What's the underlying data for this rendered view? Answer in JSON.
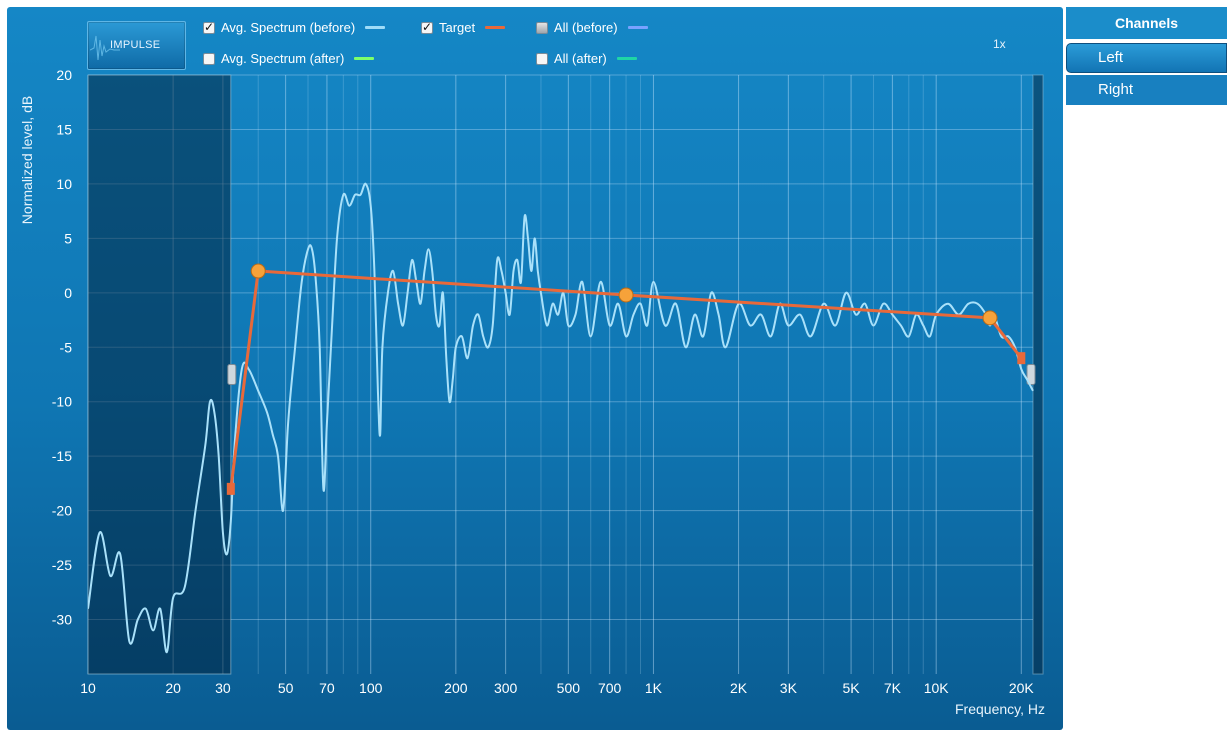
{
  "impulse_button": {
    "label": "IMPULSE"
  },
  "legend": [
    {
      "key": "avg_before",
      "label": "Avg. Spectrum (before)",
      "state": "checked",
      "color": "#9fdcf8"
    },
    {
      "key": "target",
      "label": "Target",
      "state": "checked",
      "color": "#e8693a"
    },
    {
      "key": "all_before",
      "label": "All (before)",
      "state": "mixed",
      "color": "#7aa2ff"
    },
    {
      "key": "avg_after",
      "label": "Avg. Spectrum (after)",
      "state": "unchecked",
      "color": "#7dff6a"
    },
    {
      "key": "all_after",
      "label": "All (after)",
      "state": "unchecked",
      "color": "#1fd6a6"
    }
  ],
  "zoom_label": "1x",
  "channels": {
    "header": "Channels",
    "items": [
      {
        "label": "Left",
        "selected": true
      },
      {
        "label": "Right",
        "selected": false
      }
    ]
  },
  "chart_data": {
    "type": "line",
    "ylabel": "Normalized level, dB",
    "xlabel": "Frequency, Hz",
    "xscale": "log",
    "xlim": [
      10,
      22000
    ],
    "ylim": [
      -35,
      20
    ],
    "y_ticks": [
      20,
      15,
      10,
      5,
      0,
      -5,
      -10,
      -15,
      -20,
      -25,
      -30
    ],
    "x_ticks": [
      {
        "value": 10,
        "label": "10"
      },
      {
        "value": 20,
        "label": "20"
      },
      {
        "value": 30,
        "label": "30"
      },
      {
        "value": 50,
        "label": "50"
      },
      {
        "value": 70,
        "label": "70"
      },
      {
        "value": 100,
        "label": "100"
      },
      {
        "value": 200,
        "label": "200"
      },
      {
        "value": 300,
        "label": "300"
      },
      {
        "value": 500,
        "label": "500"
      },
      {
        "value": 700,
        "label": "700"
      },
      {
        "value": 1000,
        "label": "1K"
      },
      {
        "value": 2000,
        "label": "2K"
      },
      {
        "value": 3000,
        "label": "3K"
      },
      {
        "value": 5000,
        "label": "5K"
      },
      {
        "value": 7000,
        "label": "7K"
      },
      {
        "value": 10000,
        "label": "10K"
      },
      {
        "value": 20000,
        "label": "20K"
      }
    ],
    "excluded_range_hz": [
      10,
      32
    ],
    "target_curve": [
      [
        32,
        -18
      ],
      [
        40,
        2
      ],
      [
        800,
        -0.2
      ],
      [
        15500,
        -2.3
      ],
      [
        20000,
        -6
      ]
    ],
    "target_handles": [
      [
        40,
        2
      ],
      [
        800,
        -0.2
      ],
      [
        15500,
        -2.3
      ]
    ],
    "target_end_markers": [
      [
        32,
        -18
      ],
      [
        20000,
        -6
      ]
    ],
    "spectrum_before": [
      [
        10,
        -29
      ],
      [
        11,
        -22
      ],
      [
        12,
        -26
      ],
      [
        13,
        -24
      ],
      [
        14,
        -32
      ],
      [
        15,
        -30
      ],
      [
        16,
        -29
      ],
      [
        17,
        -31
      ],
      [
        18,
        -29
      ],
      [
        19,
        -33
      ],
      [
        20,
        -28
      ],
      [
        22,
        -27
      ],
      [
        24,
        -20
      ],
      [
        26,
        -14
      ],
      [
        27,
        -10
      ],
      [
        28,
        -11
      ],
      [
        29,
        -15
      ],
      [
        30,
        -22
      ],
      [
        31,
        -24
      ],
      [
        32,
        -21
      ],
      [
        33,
        -14
      ],
      [
        35,
        -7
      ],
      [
        37,
        -7
      ],
      [
        40,
        -9
      ],
      [
        43,
        -11
      ],
      [
        45,
        -13
      ],
      [
        47,
        -15
      ],
      [
        49,
        -20
      ],
      [
        51,
        -12
      ],
      [
        54,
        -5
      ],
      [
        57,
        1
      ],
      [
        60,
        4
      ],
      [
        62,
        4
      ],
      [
        64,
        1
      ],
      [
        66,
        -5
      ],
      [
        68,
        -18
      ],
      [
        70,
        -12
      ],
      [
        73,
        -3
      ],
      [
        76,
        5
      ],
      [
        80,
        9
      ],
      [
        84,
        8
      ],
      [
        88,
        9
      ],
      [
        92,
        9
      ],
      [
        96,
        10
      ],
      [
        100,
        8
      ],
      [
        103,
        2
      ],
      [
        106,
        -9
      ],
      [
        108,
        -13
      ],
      [
        110,
        -5
      ],
      [
        115,
        0
      ],
      [
        120,
        2
      ],
      [
        125,
        -1
      ],
      [
        130,
        -3
      ],
      [
        135,
        0
      ],
      [
        140,
        3
      ],
      [
        145,
        1
      ],
      [
        150,
        -1
      ],
      [
        155,
        2
      ],
      [
        160,
        4
      ],
      [
        165,
        2
      ],
      [
        170,
        -2
      ],
      [
        175,
        -3
      ],
      [
        180,
        0
      ],
      [
        185,
        -6
      ],
      [
        190,
        -10
      ],
      [
        195,
        -8
      ],
      [
        200,
        -5
      ],
      [
        210,
        -4
      ],
      [
        220,
        -6
      ],
      [
        230,
        -3
      ],
      [
        240,
        -2
      ],
      [
        250,
        -4
      ],
      [
        260,
        -5
      ],
      [
        270,
        -3
      ],
      [
        280,
        3
      ],
      [
        290,
        2
      ],
      [
        300,
        0
      ],
      [
        310,
        -2
      ],
      [
        320,
        2
      ],
      [
        330,
        3
      ],
      [
        340,
        1
      ],
      [
        350,
        7
      ],
      [
        360,
        5
      ],
      [
        370,
        2
      ],
      [
        380,
        5
      ],
      [
        390,
        2
      ],
      [
        400,
        0
      ],
      [
        420,
        -3
      ],
      [
        440,
        -1
      ],
      [
        460,
        -2
      ],
      [
        480,
        0
      ],
      [
        500,
        -3
      ],
      [
        530,
        -2
      ],
      [
        560,
        1
      ],
      [
        600,
        -4
      ],
      [
        650,
        1
      ],
      [
        700,
        -3
      ],
      [
        750,
        -1
      ],
      [
        800,
        -4
      ],
      [
        850,
        -2
      ],
      [
        900,
        -1
      ],
      [
        950,
        -3
      ],
      [
        1000,
        1
      ],
      [
        1100,
        -3
      ],
      [
        1200,
        -1
      ],
      [
        1300,
        -5
      ],
      [
        1400,
        -2
      ],
      [
        1500,
        -4
      ],
      [
        1600,
        0
      ],
      [
        1700,
        -2
      ],
      [
        1800,
        -5
      ],
      [
        2000,
        -1
      ],
      [
        2200,
        -3
      ],
      [
        2400,
        -2
      ],
      [
        2600,
        -4
      ],
      [
        2800,
        -1
      ],
      [
        3000,
        -3
      ],
      [
        3300,
        -2
      ],
      [
        3600,
        -4
      ],
      [
        4000,
        -1
      ],
      [
        4400,
        -3
      ],
      [
        4800,
        0
      ],
      [
        5200,
        -2
      ],
      [
        5600,
        -1
      ],
      [
        6000,
        -3
      ],
      [
        6500,
        -1
      ],
      [
        7000,
        -2
      ],
      [
        7500,
        -3
      ],
      [
        8000,
        -4
      ],
      [
        8500,
        -2
      ],
      [
        9000,
        -3
      ],
      [
        9500,
        -4
      ],
      [
        10000,
        -2
      ],
      [
        11000,
        -1
      ],
      [
        12000,
        -2
      ],
      [
        13000,
        -1
      ],
      [
        14000,
        -1
      ],
      [
        15000,
        -2
      ],
      [
        15500,
        -3
      ],
      [
        16000,
        -2
      ],
      [
        17000,
        -4
      ],
      [
        18000,
        -4
      ],
      [
        19000,
        -5
      ],
      [
        20000,
        -7
      ],
      [
        21000,
        -8
      ],
      [
        22000,
        -9
      ]
    ]
  }
}
